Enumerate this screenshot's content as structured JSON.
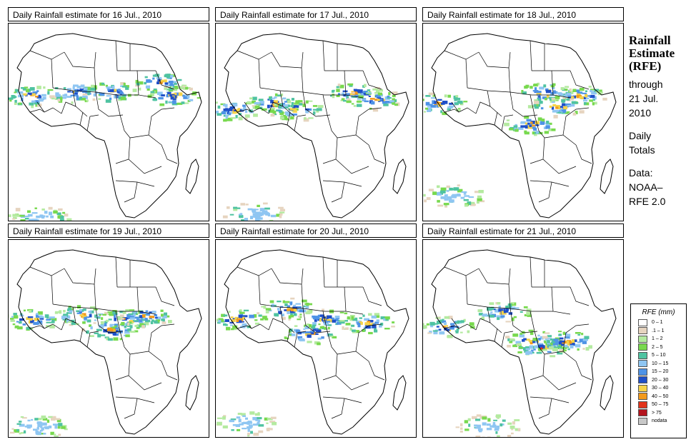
{
  "panels": [
    {
      "title": "Daily Rainfall estimate for  16 Jul., 2010"
    },
    {
      "title": "Daily Rainfall estimate for  17 Jul., 2010"
    },
    {
      "title": "Daily Rainfall estimate for  18 Jul., 2010"
    },
    {
      "title": "Daily Rainfall estimate for  19 Jul., 2010"
    },
    {
      "title": "Daily Rainfall estimate for  20 Jul., 2010"
    },
    {
      "title": "Daily Rainfall estimate for  21 Jul., 2010"
    }
  ],
  "side": {
    "title_line1": "Rainfall",
    "title_line2": "Estimate",
    "title_line3": "(RFE)",
    "through": "through",
    "date_line1": "21 Jul.",
    "date_line2": "2010",
    "totals_line1": "Daily",
    "totals_line2": "Totals",
    "data_label": "Data:",
    "data_line1": "NOAA–",
    "data_line2": "RFE 2.0"
  },
  "legend": {
    "title": "RFE (mm)",
    "items": [
      {
        "label": "0 – 1",
        "color": "#ffffff"
      },
      {
        "label": ".1 – 1",
        "color": "#e6d4bf"
      },
      {
        "label": "1 – 2",
        "color": "#b4eaa0"
      },
      {
        "label": "2 – 5",
        "color": "#78d94e"
      },
      {
        "label": "5 – 10",
        "color": "#4fc3a1"
      },
      {
        "label": "10 – 15",
        "color": "#8fc6f2"
      },
      {
        "label": "15 – 20",
        "color": "#4e93e6"
      },
      {
        "label": "20 – 30",
        "color": "#1f4fc8"
      },
      {
        "label": "30 – 40",
        "color": "#f5d34a"
      },
      {
        "label": "40 – 50",
        "color": "#f39a1c"
      },
      {
        "label": "50 – 75",
        "color": "#e2331b"
      },
      {
        "label": "> 75",
        "color": "#b4141e"
      },
      {
        "label": "nodata",
        "color": "#c8c8c8"
      }
    ]
  }
}
